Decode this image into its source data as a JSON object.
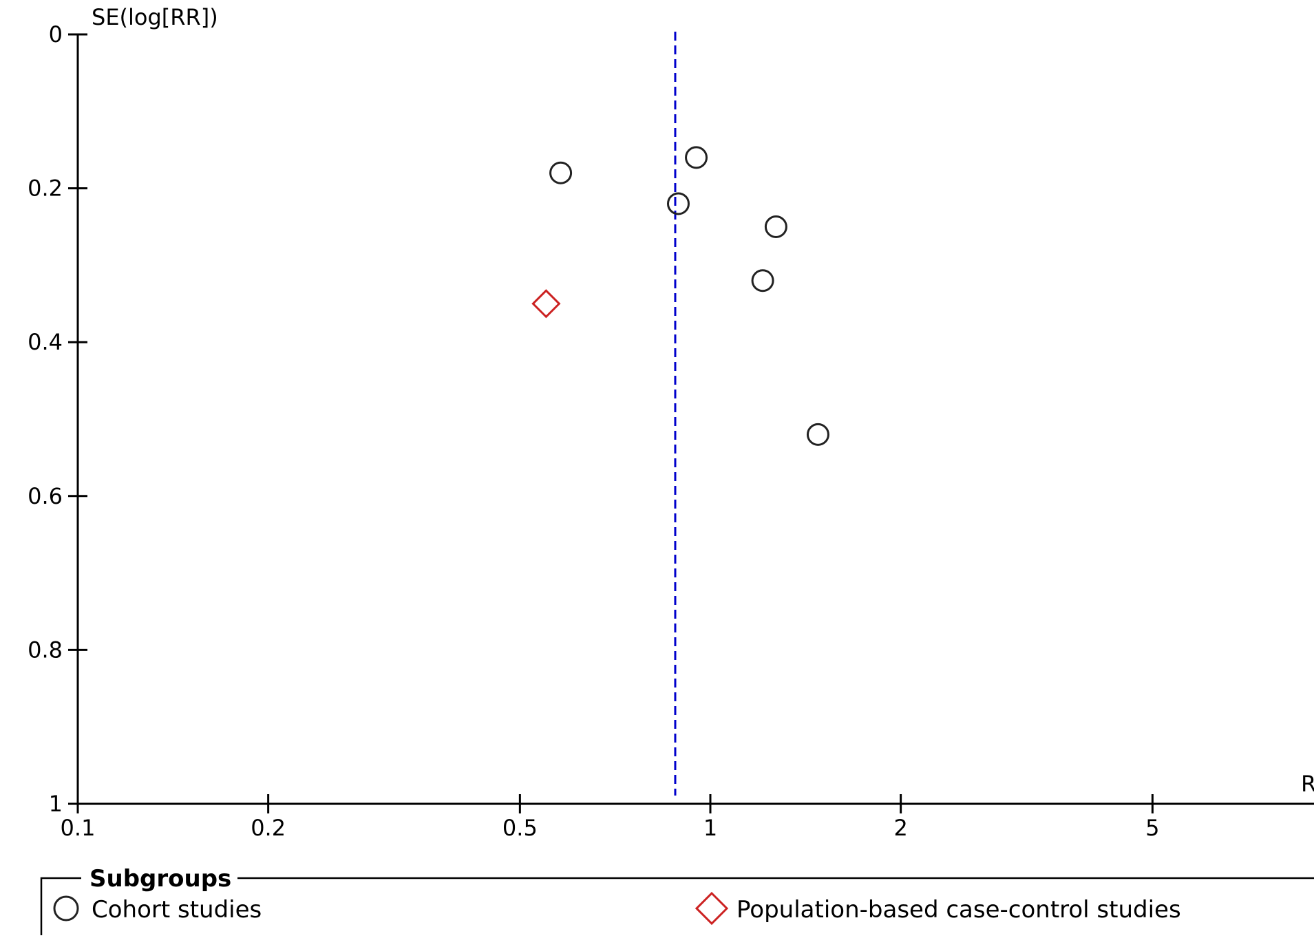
{
  "chart_data": {
    "type": "scatter",
    "title": "",
    "ylabel": "SE(log[RR])",
    "xlabel": "R",
    "x_scale": "log",
    "xlim": [
      0.1,
      10
    ],
    "ylim": [
      0,
      1
    ],
    "y_inverted": true,
    "x_ticks": [
      0.1,
      0.2,
      0.5,
      1,
      2,
      5
    ],
    "x_tick_labels": [
      "0.1",
      "0.2",
      "0.5",
      "1",
      "2",
      "5"
    ],
    "y_ticks": [
      0,
      0.2,
      0.4,
      0.6,
      0.8,
      1
    ],
    "y_tick_labels": [
      "0",
      "0.2",
      "0.4",
      "0.6",
      "0.8",
      "1"
    ],
    "reference_line": {
      "x": 0.88,
      "style": "dashed",
      "color": "#0000cc"
    },
    "series": [
      {
        "name": "Cohort studies",
        "marker": "circle",
        "color": "#222222",
        "points": [
          {
            "x": 0.58,
            "y": 0.18
          },
          {
            "x": 0.95,
            "y": 0.16
          },
          {
            "x": 0.89,
            "y": 0.22
          },
          {
            "x": 1.27,
            "y": 0.25
          },
          {
            "x": 1.21,
            "y": 0.32
          },
          {
            "x": 1.48,
            "y": 0.52
          }
        ]
      },
      {
        "name": "Population-based case-control studies",
        "marker": "diamond",
        "color": "#cc2222",
        "points": [
          {
            "x": 0.55,
            "y": 0.35
          }
        ]
      }
    ],
    "legend": {
      "title": "Subgroups",
      "position": "bottom"
    }
  }
}
